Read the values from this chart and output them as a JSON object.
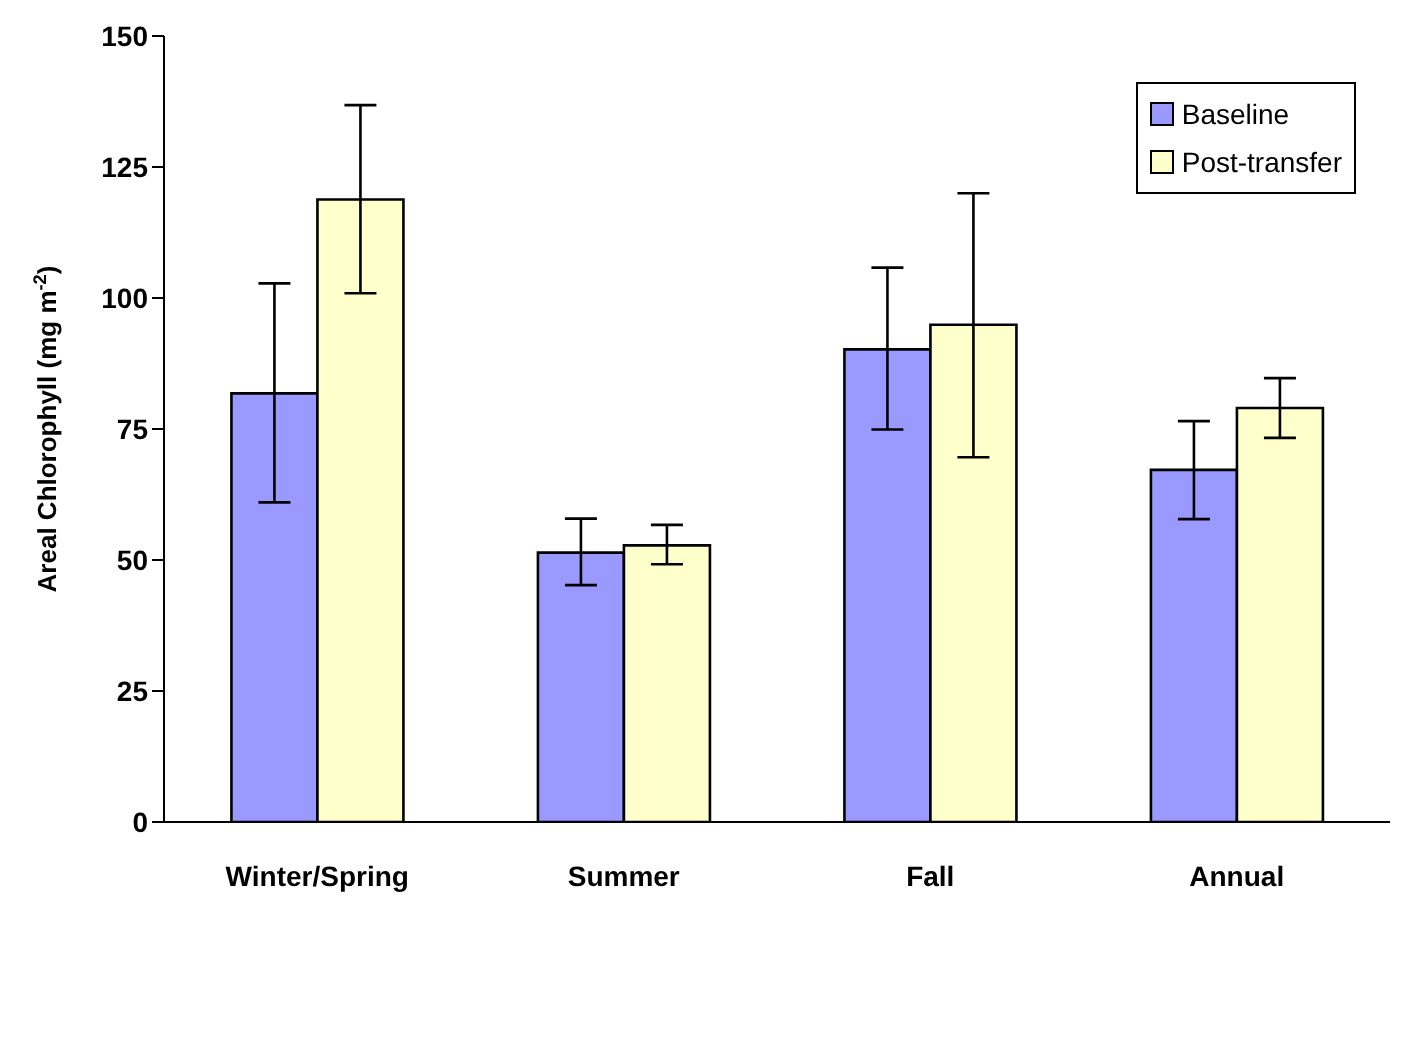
{
  "chart_data": {
    "type": "bar",
    "ylabel": "Areal Chlorophyll (mg m$^{-2}$)",
    "categories": [
      "Winter/Spring",
      "Summer",
      "Fall",
      "Annual"
    ],
    "series": [
      {
        "name": "Baseline",
        "color": "#9999ff",
        "values": [
          81.8,
          51.4,
          90.2,
          67.2
        ],
        "errors": [
          [
            61.0,
            102.8
          ],
          [
            45.2,
            57.9
          ],
          [
            74.9,
            105.8
          ],
          [
            57.8,
            76.5
          ]
        ]
      },
      {
        "name": "Post-transfer",
        "color": "#ffffcc",
        "values": [
          118.8,
          52.8,
          94.9,
          79.0
        ],
        "errors": [
          [
            100.9,
            136.8
          ],
          [
            49.2,
            56.7
          ],
          [
            69.6,
            120.0
          ],
          [
            73.3,
            84.7
          ]
        ]
      }
    ],
    "ylim": [
      0,
      150
    ],
    "yticks": [
      0,
      25,
      50,
      75,
      100,
      125,
      150
    ],
    "grid": false,
    "legend": "top right"
  }
}
